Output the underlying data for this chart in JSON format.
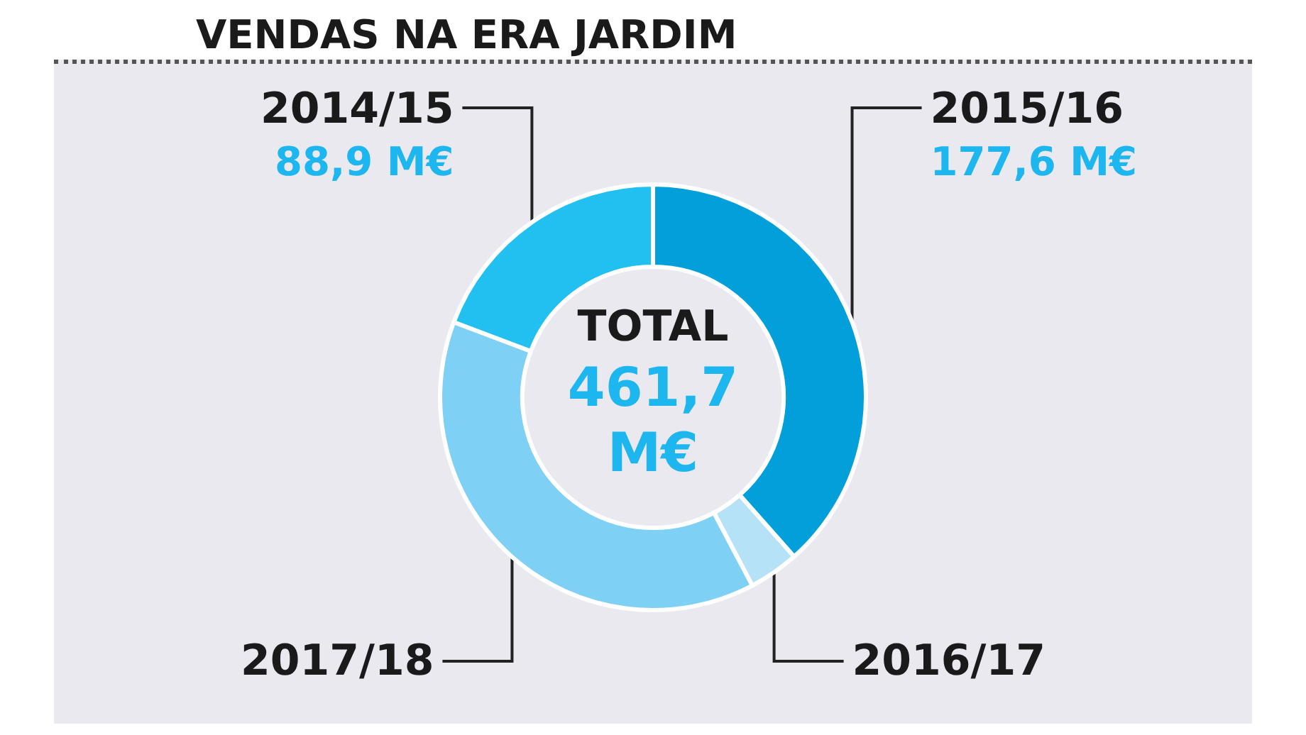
{
  "chart_data": {
    "type": "donut",
    "title": "VENDAS NA ERA JARDIM",
    "categories": [
      "2015/16",
      "2016/17",
      "2017/18",
      "2014/15"
    ],
    "values": [
      177.6,
      17.6,
      177.6,
      88.9
    ],
    "value_labels": [
      "177,6 M€",
      null,
      null,
      "88,9 M€"
    ],
    "colors": [
      "#039fdb",
      "#b5e2f7",
      "#7fd0f5",
      "#22c0f0"
    ],
    "annotations": [
      "TOTAL",
      "461,7 M€"
    ],
    "legend": false
  }
}
